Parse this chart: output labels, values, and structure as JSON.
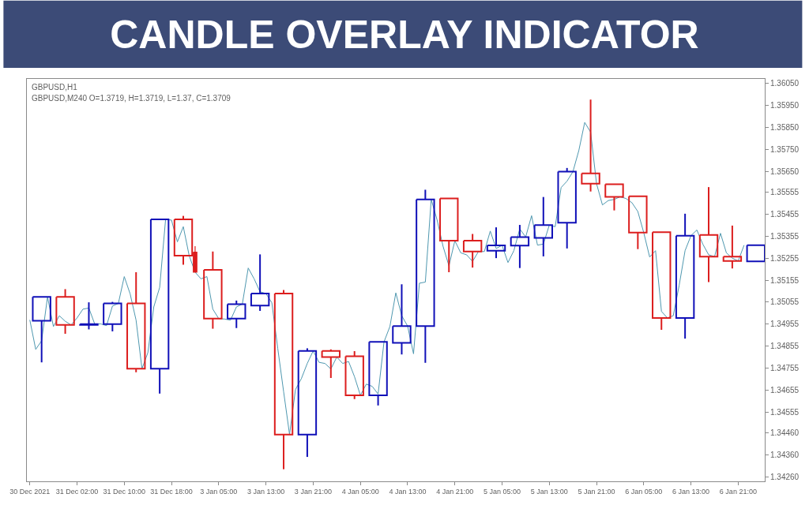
{
  "chart_data": {
    "type": "candlestick",
    "title": "CANDLE OVERLAY INDICATOR",
    "annotations": [
      "GBPUSD,H1",
      "GBPUSD,M240 O=1.3719, H=1.3719, L=1.37, C=1.3709"
    ],
    "categories": [
      "30 Dec 2021",
      null,
      null,
      null,
      null,
      null,
      null,
      null,
      "31 Dec 02:00",
      null,
      null,
      null,
      null,
      null,
      null,
      null,
      "31 Dec 10:00",
      null,
      null,
      null,
      null,
      null,
      null,
      null,
      "31 Dec 18:00",
      null,
      null,
      null,
      null,
      null,
      null,
      null,
      "3 Jan 05:00",
      null,
      null,
      null,
      null,
      null,
      null,
      null,
      "3 Jan 13:00",
      null,
      null,
      null,
      null,
      null,
      null,
      null,
      "3 Jan 21:00",
      null,
      null,
      null,
      null,
      null,
      null,
      null,
      "4 Jan 05:00",
      null,
      null,
      null,
      null,
      null,
      null,
      null,
      "4 Jan 13:00",
      null,
      null,
      null,
      null,
      null,
      null,
      null,
      "4 Jan 21:00",
      null,
      null,
      null,
      null,
      null,
      null,
      null,
      "5 Jan 05:00",
      null,
      null,
      null,
      null,
      null,
      null,
      null,
      "5 Jan 13:00",
      null,
      null,
      null,
      null,
      null,
      null,
      null,
      "5 Jan 21:00",
      null,
      null,
      null,
      null,
      null,
      null,
      null,
      "6 Jan 05:00",
      null,
      null,
      null,
      null,
      null,
      null,
      null,
      "6 Jan 13:00",
      null,
      null,
      null,
      null,
      null,
      null,
      null,
      "6 Jan 21:00",
      null,
      null,
      null,
      null
    ],
    "ohlc": [
      null,
      null,
      [
        1.3497,
        1.35079,
        1.34781,
        1.35079
      ],
      null,
      null,
      null,
      [
        1.35079,
        1.35114,
        1.34911,
        1.34951
      ],
      null,
      null,
      null,
      [
        1.34951,
        1.35054,
        1.34931,
        1.34955
      ],
      null,
      null,
      null,
      [
        1.34955,
        1.35056,
        1.34922,
        1.35049
      ],
      null,
      null,
      null,
      [
        1.35049,
        1.35191,
        1.34736,
        1.34752
      ],
      null,
      null,
      null,
      [
        1.34752,
        1.35434,
        1.34639,
        1.35431
      ],
      null,
      null,
      null,
      [
        1.35431,
        1.35447,
        1.35225,
        1.35266
      ],
      null,
      [
        1.35282,
        1.35309,
        1.35191,
        1.35191
      ],
      null,
      null,
      [
        1.35202,
        1.35285,
        1.34934,
        1.3498
      ],
      null,
      null,
      null,
      [
        1.3498,
        1.35062,
        1.34937,
        1.35046
      ],
      null,
      null,
      null,
      [
        1.35039,
        1.35272,
        1.35015,
        1.35094
      ],
      null,
      null,
      null,
      [
        1.35094,
        1.3511,
        1.34295,
        1.34453
      ],
      null,
      null,
      null,
      [
        1.34453,
        1.34845,
        1.34351,
        1.34833
      ],
      null,
      null,
      null,
      [
        1.34833,
        1.3484,
        1.3471,
        1.34805
      ],
      null,
      null,
      null,
      [
        1.34809,
        1.34832,
        1.34614,
        1.34631
      ],
      null,
      null,
      null,
      [
        1.34631,
        1.34874,
        1.34585,
        1.34874
      ],
      null,
      null,
      null,
      [
        1.3487,
        1.35136,
        1.34817,
        1.34946
      ],
      null,
      null,
      null,
      [
        1.34946,
        1.35566,
        1.34779,
        1.35522
      ],
      null,
      null,
      null,
      [
        1.35526,
        1.35526,
        1.35191,
        1.35334
      ],
      null,
      null,
      null,
      [
        1.35334,
        1.35365,
        1.35212,
        1.35285
      ],
      null,
      null,
      null,
      [
        1.35289,
        1.35395,
        1.35255,
        1.35313
      ],
      null,
      null,
      null,
      [
        1.35312,
        1.35406,
        1.3521,
        1.35351
      ],
      null,
      null,
      null,
      [
        1.35347,
        1.35533,
        1.35263,
        1.35405
      ],
      null,
      null,
      null,
      [
        1.35416,
        1.35665,
        1.35299,
        1.35648
      ],
      null,
      null,
      null,
      [
        1.3564,
        1.35976,
        1.35558,
        1.35594
      ],
      null,
      null,
      null,
      [
        1.35591,
        1.35591,
        1.35472,
        1.35534
      ],
      null,
      null,
      null,
      [
        1.35536,
        1.35536,
        1.35296,
        1.35371
      ],
      null,
      null,
      null,
      [
        1.35373,
        1.35373,
        1.34929,
        1.34983
      ],
      null,
      null,
      null,
      [
        1.34983,
        1.35457,
        1.34889,
        1.35357
      ],
      null,
      null,
      null,
      [
        1.3536,
        1.35578,
        1.35146,
        1.35262
      ],
      null,
      null,
      null,
      [
        1.35262,
        1.35403,
        1.35208,
        1.35242
      ],
      null,
      null,
      null,
      [
        1.3524,
        1.35314,
        1.3524,
        1.35314
      ],
      null
    ],
    "colors": [
      null,
      null,
      "#1010b8",
      null,
      null,
      null,
      "#dc1e1e",
      null,
      null,
      null,
      "#1010b8",
      null,
      null,
      null,
      "#1010b8",
      null,
      null,
      null,
      "#dc1e1e",
      null,
      null,
      null,
      "#1010b8",
      null,
      null,
      null,
      "#dc1e1e",
      null,
      "#dc1e1e",
      null,
      null,
      "#dc1e1e",
      null,
      null,
      null,
      "#1010b8",
      null,
      null,
      null,
      "#1010b8",
      null,
      null,
      null,
      "#dc1e1e",
      null,
      null,
      null,
      "#1010b8",
      null,
      null,
      null,
      "#dc1e1e",
      null,
      null,
      null,
      "#dc1e1e",
      null,
      null,
      null,
      "#1010b8",
      null,
      null,
      null,
      "#1010b8",
      null,
      null,
      null,
      "#1010b8",
      null,
      null,
      null,
      "#dc1e1e",
      null,
      null,
      null,
      "#dc1e1e",
      null,
      null,
      null,
      "#1010b8",
      null,
      null,
      null,
      "#1010b8",
      null,
      null,
      null,
      "#1010b8",
      null,
      null,
      null,
      "#1010b8",
      null,
      null,
      null,
      "#dc1e1e",
      null,
      null,
      null,
      "#dc1e1e",
      null,
      null,
      null,
      "#dc1e1e",
      null,
      null,
      null,
      "#dc1e1e",
      null,
      null,
      null,
      "#1010b8",
      null,
      null,
      null,
      "#dc1e1e",
      null,
      null,
      null,
      "#dc1e1e",
      null,
      null,
      null,
      "#1010b8",
      null
    ],
    "series": [
      {
        "type": "line",
        "color": "#4f98b0",
        "values": [
          1.34974,
          1.3484,
          1.34879,
          1.35079,
          1.34944,
          1.34993,
          1.34968,
          1.34951,
          1.34983,
          1.35023,
          1.35028,
          1.34955,
          1.34956,
          1.34948,
          1.35037,
          1.35049,
          1.35171,
          1.35092,
          1.34973,
          1.34752,
          1.34825,
          1.35033,
          1.35122,
          1.35431,
          1.35428,
          1.35329,
          1.35398,
          1.35266,
          1.35191,
          1.35161,
          1.35171,
          1.35023,
          1.3498,
          1.34978,
          1.34973,
          1.35033,
          1.35046,
          1.3521,
          1.35161,
          1.35102,
          1.35094,
          1.35052,
          1.34845,
          1.34647,
          1.34453,
          1.34657,
          1.34707,
          1.34776,
          1.34833,
          1.34781,
          1.34776,
          1.34751,
          1.34805,
          1.34776,
          1.34785,
          1.34716,
          1.34631,
          1.34682,
          1.34672,
          1.34637,
          1.34874,
          1.34944,
          1.35097,
          1.34993,
          1.34946,
          1.3482,
          1.35141,
          1.35146,
          1.35522,
          1.35428,
          1.35309,
          1.3522,
          1.35334,
          1.35279,
          1.3527,
          1.3524,
          1.35285,
          1.35285,
          1.35378,
          1.35299,
          1.35313,
          1.35235,
          1.35289,
          1.35388,
          1.35351,
          1.35448,
          1.35314,
          1.35319,
          1.35405,
          1.35398,
          1.35576,
          1.35605,
          1.35648,
          1.35744,
          1.35872,
          1.35828,
          1.35594,
          1.35497,
          1.35517,
          1.35522,
          1.35534,
          1.35526,
          1.35507,
          1.35467,
          1.35371,
          1.3526,
          1.35289,
          1.35013,
          1.34983,
          1.34993,
          1.35131,
          1.35289,
          1.35357,
          1.35383,
          1.35319,
          1.3527,
          1.35262,
          1.35368,
          1.35279,
          1.35255,
          1.35242,
          1.35314,
          null,
          null,
          null
        ]
      }
    ],
    "ylim": [
      1.3424,
      1.3607
    ],
    "yticks": [
      {
        "value": 1.3426,
        "label": "1.34260"
      },
      {
        "value": 1.3436,
        "label": "1.34360"
      },
      {
        "value": 1.3446,
        "label": "1.34460"
      },
      {
        "value": 1.34555,
        "label": "1.34555"
      },
      {
        "value": 1.34655,
        "label": "1.34655"
      },
      {
        "value": 1.34755,
        "label": "1.34755"
      },
      {
        "value": 1.34855,
        "label": "1.34855"
      },
      {
        "value": 1.34955,
        "label": "1.34955"
      },
      {
        "value": 1.35055,
        "label": "1.35055"
      },
      {
        "value": 1.35155,
        "label": "1.35155"
      },
      {
        "value": 1.35255,
        "label": "1.35255"
      },
      {
        "value": 1.35355,
        "label": "1.35355"
      },
      {
        "value": 1.35455,
        "label": "1.35455"
      },
      {
        "value": 1.35555,
        "label": "1.35555"
      },
      {
        "value": 1.3565,
        "label": "1.35650"
      },
      {
        "value": 1.3575,
        "label": "1.35750"
      },
      {
        "value": 1.3585,
        "label": "1.35850"
      },
      {
        "value": 1.3595,
        "label": "1.35950"
      },
      {
        "value": 1.3605,
        "label": "1.36050"
      }
    ]
  }
}
